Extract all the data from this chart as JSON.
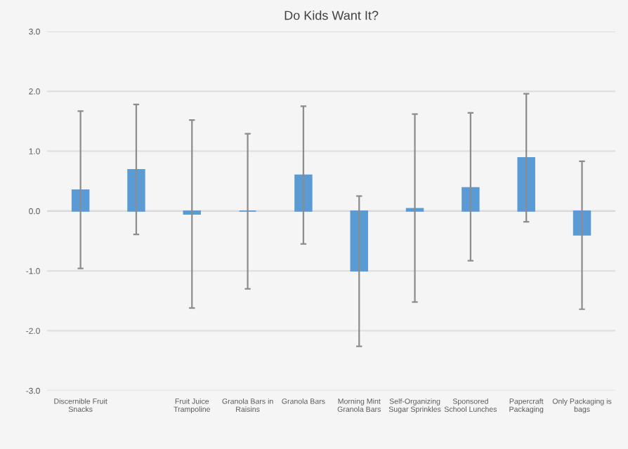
{
  "chart_data": {
    "type": "bar",
    "title": "Do Kids Want It?",
    "categories": [
      "Discernible Fruit\nSnacks",
      null,
      "Fruit Juice\nTrampoline",
      "Granola Bars in\nRaisins",
      "Granola Bars",
      "Morning Mint\nGranola Bars",
      "Self-Organizing\nSugar Sprinkles",
      "Sponsored\nSchool Lunches",
      "Papercraft\nPackaging",
      "Only Packaging is\nbags"
    ],
    "values": [
      0.35,
      0.69,
      -0.05,
      0,
      0.6,
      -1.0,
      0.04,
      0.39,
      0.89,
      -0.4
    ],
    "errors": [
      [
        -0.96,
        1.67
      ],
      [
        -0.39,
        1.78
      ],
      [
        -1.62,
        1.52
      ],
      [
        -1.3,
        1.29
      ],
      [
        -0.55,
        1.75
      ],
      [
        -2.26,
        0.25
      ],
      [
        -1.52,
        1.62
      ],
      [
        -0.83,
        1.64
      ],
      [
        -0.18,
        1.96
      ],
      [
        -1.64,
        0.83
      ]
    ],
    "color": "#5b9bd5",
    "ylim": [
      -3,
      3
    ],
    "yticks": [
      {
        "value": -3,
        "label": "-3.0"
      },
      {
        "value": -2,
        "label": "-2.0"
      },
      {
        "value": -1,
        "label": "-1.0"
      },
      {
        "value": 0,
        "label": "0.0"
      },
      {
        "value": 1,
        "label": "1.0"
      },
      {
        "value": 2,
        "label": "2.0"
      },
      {
        "value": 3,
        "label": "3.0"
      }
    ],
    "grid": "y"
  }
}
